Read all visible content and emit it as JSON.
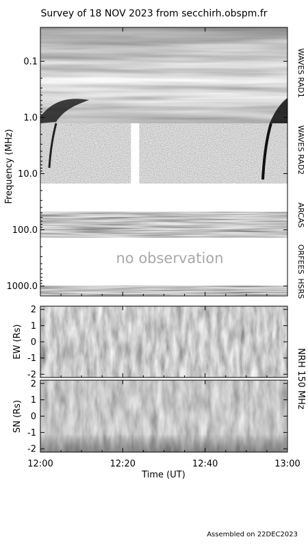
{
  "title": "Survey of 18 NOV 2023 from secchirh.obspm.fr",
  "footer": "Assembled on 22DEC2023",
  "colors": {
    "frame": "#000000",
    "paper": "#ffffff",
    "placeholder_text": "#a8a8a8"
  },
  "chart_data": [
    {
      "type": "heatmap",
      "name": "spectrogram",
      "ylabel": "Frequency (MHz)",
      "y_scale": "log",
      "y_reversed": true,
      "ylim": [
        0.025,
        1500
      ],
      "y_ticks": [
        "0.1",
        "1.0",
        "10.0",
        "100.0",
        "1000.0"
      ],
      "y_tick_values": [
        0.1,
        1.0,
        10.0,
        100.0,
        1000.0
      ],
      "xlim": [
        "12:00",
        "13:00"
      ],
      "bands": [
        {
          "label": "WAVES RAD1",
          "freq_range": [
            0.025,
            1.05
          ]
        },
        {
          "label": "WAVES RAD2",
          "freq_range": [
            1.05,
            13.8
          ]
        },
        {
          "label": "ARCAS",
          "freq_range": [
            40,
            75
          ]
        },
        {
          "label": "ORFEES",
          "freq_range": [
            140,
            800
          ]
        },
        {
          "label": "HSRS",
          "freq_range": [
            950,
            1300
          ]
        }
      ],
      "data_gap_utc": [
        "12:22",
        "12:24"
      ],
      "placeholder": "no observation"
    },
    {
      "type": "heatmap",
      "name": "NRH EW",
      "ylabel": "EW (Rs)",
      "ylim": [
        -2.2,
        2.2
      ],
      "y_ticks": [
        "-2",
        "-1",
        "0",
        "1",
        "2"
      ],
      "y_tick_values": [
        -2,
        -1,
        0,
        1,
        2
      ]
    },
    {
      "type": "heatmap",
      "name": "NRH SN",
      "ylabel": "SN (Rs)",
      "ylim": [
        -2.2,
        2.2
      ],
      "y_ticks": [
        "-2",
        "-1",
        "0",
        "1",
        "2"
      ],
      "y_tick_values": [
        -2,
        -1,
        0,
        1,
        2
      ]
    }
  ],
  "nrh_label": "NRH 150 MHz",
  "x_axis": {
    "label": "Time (UT)",
    "ticks": [
      "12:00",
      "12:20",
      "12:40",
      "13:00"
    ],
    "tick_minutes": [
      0,
      20,
      40,
      60
    ]
  }
}
